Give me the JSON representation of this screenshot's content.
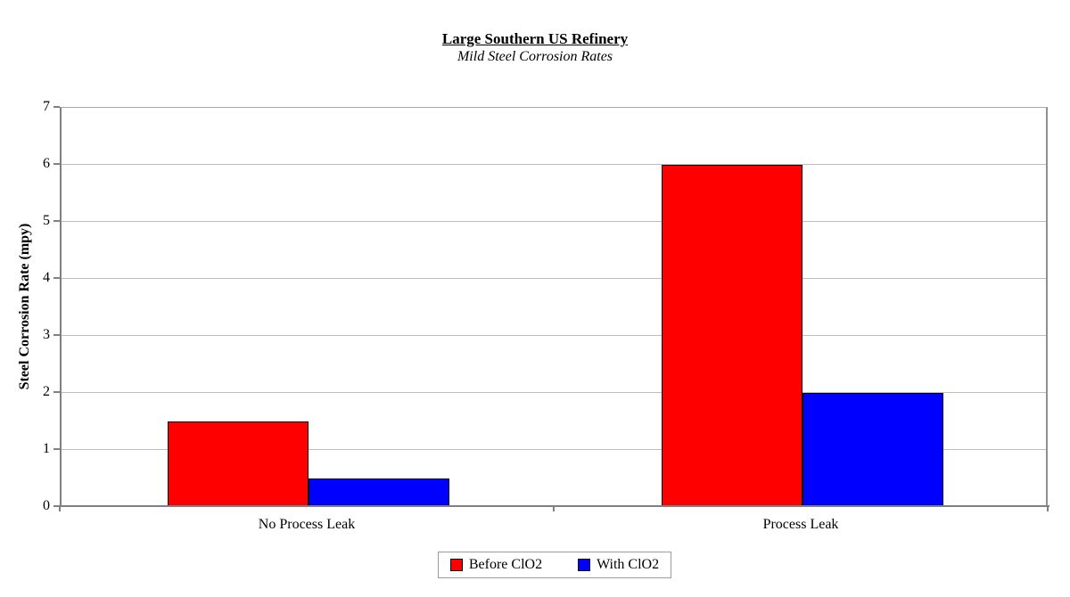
{
  "page": {
    "background": "#ffffff"
  },
  "chart_data": {
    "type": "bar",
    "title": "Large Southern US Refinery",
    "subtitle": "Mild Steel Corrosion Rates",
    "ylabel": "Steel Corrosion Rate (mpy)",
    "xlabel": "",
    "categories": [
      "No Process Leak",
      "Process Leak"
    ],
    "series": [
      {
        "name": "Before ClO2",
        "color": "#ff0000",
        "values": [
          1.5,
          6
        ]
      },
      {
        "name": "With ClO2",
        "color": "#0000ff",
        "values": [
          0.5,
          2
        ]
      }
    ],
    "ylim": [
      0,
      7
    ],
    "yticks": [
      0,
      1,
      2,
      3,
      4,
      5,
      6,
      7
    ],
    "grid": true,
    "legend_position": "bottom",
    "colors": {
      "gridline": "#bdbdbd",
      "axis": "#808080",
      "bar_border": "#000000",
      "text": "#000000"
    }
  }
}
